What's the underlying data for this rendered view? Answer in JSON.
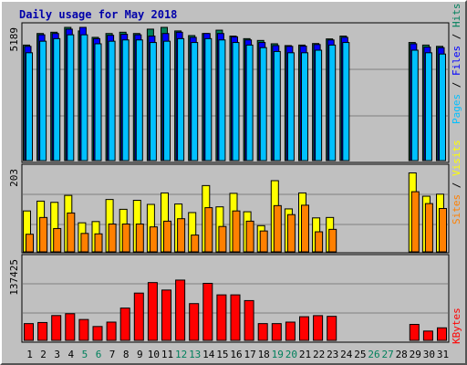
{
  "chart_data": {
    "type": "bar",
    "title": "Daily usage for May 2018",
    "days": [
      "1",
      "2",
      "3",
      "4",
      "5",
      "6",
      "7",
      "8",
      "9",
      "10",
      "11",
      "12",
      "13",
      "14",
      "15",
      "16",
      "17",
      "18",
      "19",
      "20",
      "21",
      "22",
      "23",
      "24",
      "25",
      "26",
      "27",
      "28",
      "29",
      "30",
      "31"
    ],
    "weekend_days": [
      "5",
      "6",
      "12",
      "13",
      "19",
      "20",
      "26",
      "27"
    ],
    "series": {
      "hits": [
        4500,
        4950,
        5000,
        5189,
        5050,
        4800,
        4950,
        5000,
        4950,
        5120,
        5189,
        5050,
        4870,
        4950,
        5080,
        4850,
        4750,
        4680,
        4550,
        4480,
        4500,
        4560,
        4740,
        4850,
        0,
        0,
        0,
        0,
        4600,
        4500,
        4450
      ],
      "files": [
        4450,
        4900,
        4950,
        5120,
        5189,
        4750,
        4880,
        4920,
        4900,
        4850,
        4950,
        5000,
        4800,
        4950,
        4950,
        4820,
        4700,
        4600,
        4480,
        4450,
        4460,
        4520,
        4700,
        4800,
        0,
        0,
        0,
        0,
        4550,
        4420,
        4400
      ],
      "pages": [
        4200,
        4650,
        4750,
        4900,
        4900,
        4550,
        4650,
        4700,
        4700,
        4600,
        4650,
        4750,
        4600,
        4750,
        4700,
        4600,
        4500,
        4400,
        4250,
        4200,
        4200,
        4300,
        4500,
        4600,
        0,
        0,
        0,
        0,
        4300,
        4200,
        4150
      ],
      "visits": [
        100,
        124,
        121,
        138,
        71,
        74,
        128,
        104,
        126,
        116,
        144,
        117,
        96,
        162,
        110,
        143,
        98,
        64,
        174,
        105,
        144,
        83,
        84,
        0,
        0,
        0,
        0,
        0,
        193,
        136,
        141
      ],
      "sites": [
        43,
        84,
        57,
        95,
        45,
        44,
        68,
        68,
        68,
        61,
        75,
        81,
        41,
        108,
        62,
        100,
        75,
        51,
        113,
        91,
        114,
        49,
        55,
        0,
        0,
        0,
        0,
        0,
        147,
        118,
        106
      ],
      "kbytes": [
        28350,
        30200,
        42000,
        45100,
        35300,
        23450,
        30900,
        54650,
        80000,
        97800,
        85150,
        102000,
        62200,
        96500,
        77000,
        77000,
        67300,
        28350,
        28350,
        30900,
        40000,
        41850,
        40650,
        0,
        0,
        0,
        0,
        0,
        27000,
        15750,
        21200
      ]
    },
    "colors": {
      "hits": "#00805c",
      "files": "#0000ff",
      "pages": "#00c0ff",
      "visits": "#ffff00",
      "sites": "#ff8000",
      "kbytes": "#ff0000",
      "weekday_label": "#000000",
      "weekend_label": "#00805c",
      "title": "#0000aa"
    },
    "panels": [
      {
        "max_label": "5189",
        "max": 5189,
        "legend": [
          {
            "text": "Pages",
            "series": "pages"
          },
          {
            "text": " / ",
            "series": null
          },
          {
            "text": "Files",
            "series": "files"
          },
          {
            "text": " / ",
            "series": null
          },
          {
            "text": "Hits",
            "series": "hits"
          }
        ]
      },
      {
        "max_label": "203",
        "max": 203,
        "legend": [
          {
            "text": "Sites",
            "series": "sites"
          },
          {
            "text": " / ",
            "series": null
          },
          {
            "text": "Visits",
            "series": "visits"
          }
        ]
      },
      {
        "max_label": "137425",
        "max": 137425,
        "legend": [
          {
            "text": "KBytes",
            "series": "kbytes"
          }
        ]
      }
    ],
    "grid": true
  }
}
